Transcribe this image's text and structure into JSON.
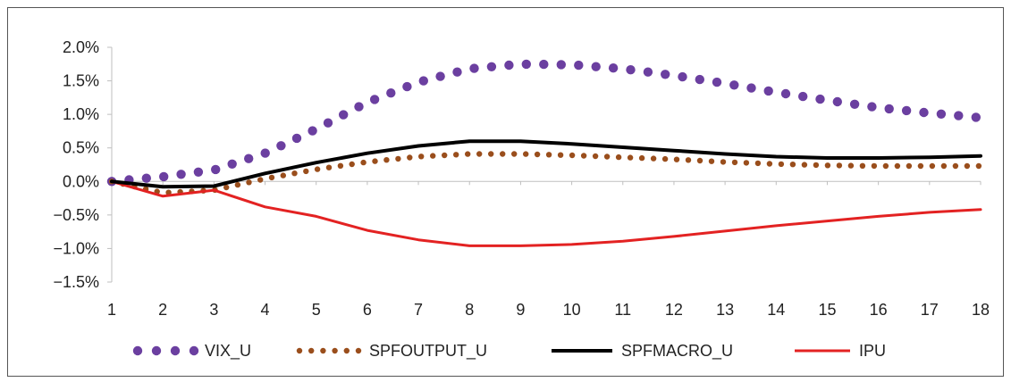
{
  "chart_data": {
    "type": "line",
    "title": "",
    "xlabel": "",
    "ylabel": "",
    "x": [
      1,
      2,
      3,
      4,
      5,
      6,
      7,
      8,
      9,
      10,
      11,
      12,
      13,
      14,
      15,
      16,
      17,
      18
    ],
    "x_tick_labels": [
      "1",
      "2",
      "3",
      "4",
      "5",
      "6",
      "7",
      "8",
      "9",
      "10",
      "11",
      "12",
      "13",
      "14",
      "15",
      "16",
      "17",
      "18"
    ],
    "ylim": [
      -0.015,
      0.02
    ],
    "y_ticks": [
      -0.015,
      -0.01,
      -0.005,
      0.0,
      0.005,
      0.01,
      0.015,
      0.02
    ],
    "y_tick_labels": [
      "−1.5%",
      "−1.0%",
      "−0.5%",
      "0.0%",
      "0.5%",
      "1.0%",
      "1.5%",
      "2.0%"
    ],
    "grid": false,
    "legend_position": "bottom",
    "series": [
      {
        "name": "VIX_U",
        "style": "dotted-large",
        "color": "#6b3fa0",
        "values": [
          0.0,
          0.0007,
          0.0017,
          0.0042,
          0.0078,
          0.0118,
          0.0148,
          0.0168,
          0.0175,
          0.0174,
          0.0168,
          0.0158,
          0.0146,
          0.0133,
          0.0121,
          0.011,
          0.0102,
          0.0095
        ]
      },
      {
        "name": "SPFOUTPUT_U",
        "style": "dotted-small",
        "color": "#9a4e1c",
        "values": [
          0.0,
          -0.0017,
          -0.0013,
          0.0004,
          0.0018,
          0.0029,
          0.0037,
          0.0041,
          0.0041,
          0.0039,
          0.0036,
          0.0033,
          0.0029,
          0.0026,
          0.0024,
          0.0023,
          0.0023,
          0.0023
        ]
      },
      {
        "name": "SPFMACRO_U",
        "style": "solid-thick",
        "color": "#000000",
        "values": [
          0.0,
          -0.0008,
          -0.0007,
          0.0012,
          0.0028,
          0.0042,
          0.0053,
          0.006,
          0.006,
          0.0056,
          0.0051,
          0.0046,
          0.0041,
          0.0037,
          0.0035,
          0.0035,
          0.0036,
          0.0038
        ]
      },
      {
        "name": "IPU",
        "style": "solid",
        "color": "#e32222",
        "values": [
          0.0,
          -0.0022,
          -0.0013,
          -0.0038,
          -0.0052,
          -0.0073,
          -0.0087,
          -0.0096,
          -0.0096,
          -0.0094,
          -0.0089,
          -0.0082,
          -0.0074,
          -0.0066,
          -0.0059,
          -0.0052,
          -0.0046,
          -0.0042
        ]
      }
    ]
  }
}
